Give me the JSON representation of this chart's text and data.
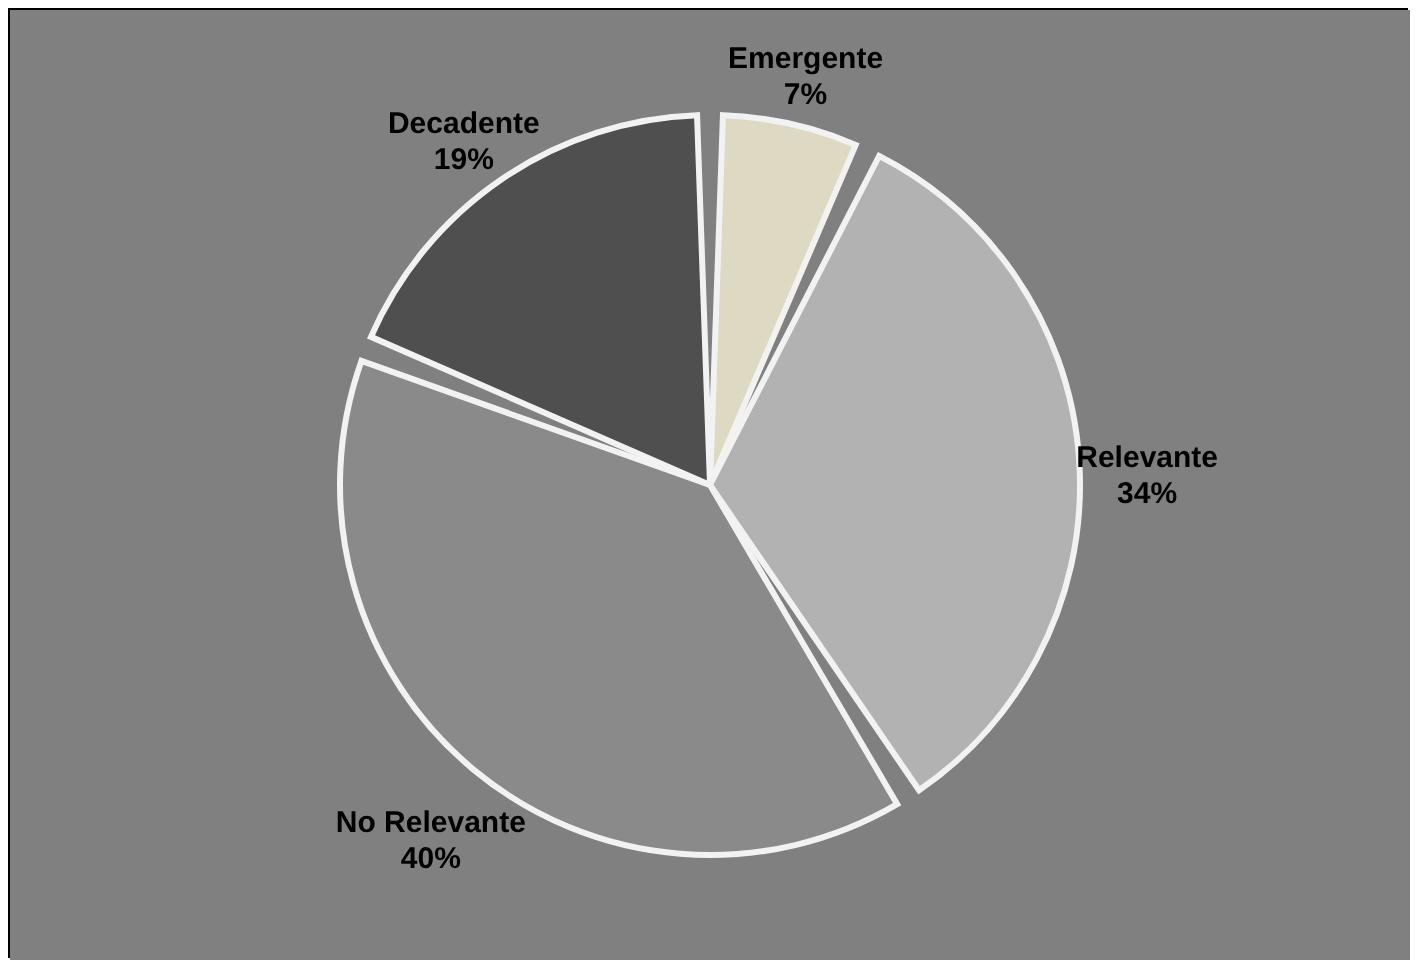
{
  "chart_data": {
    "type": "pie",
    "categories": [
      "Emergente",
      "Relevante",
      "No Relevante",
      "Decadente"
    ],
    "values": [
      7,
      34,
      40,
      19
    ],
    "colors": [
      "#ddd9c3",
      "#b2b2b2",
      "#8a8a8a",
      "#4f4f4f"
    ],
    "value_labels": [
      "7%",
      "34%",
      "40%",
      "19%"
    ]
  }
}
